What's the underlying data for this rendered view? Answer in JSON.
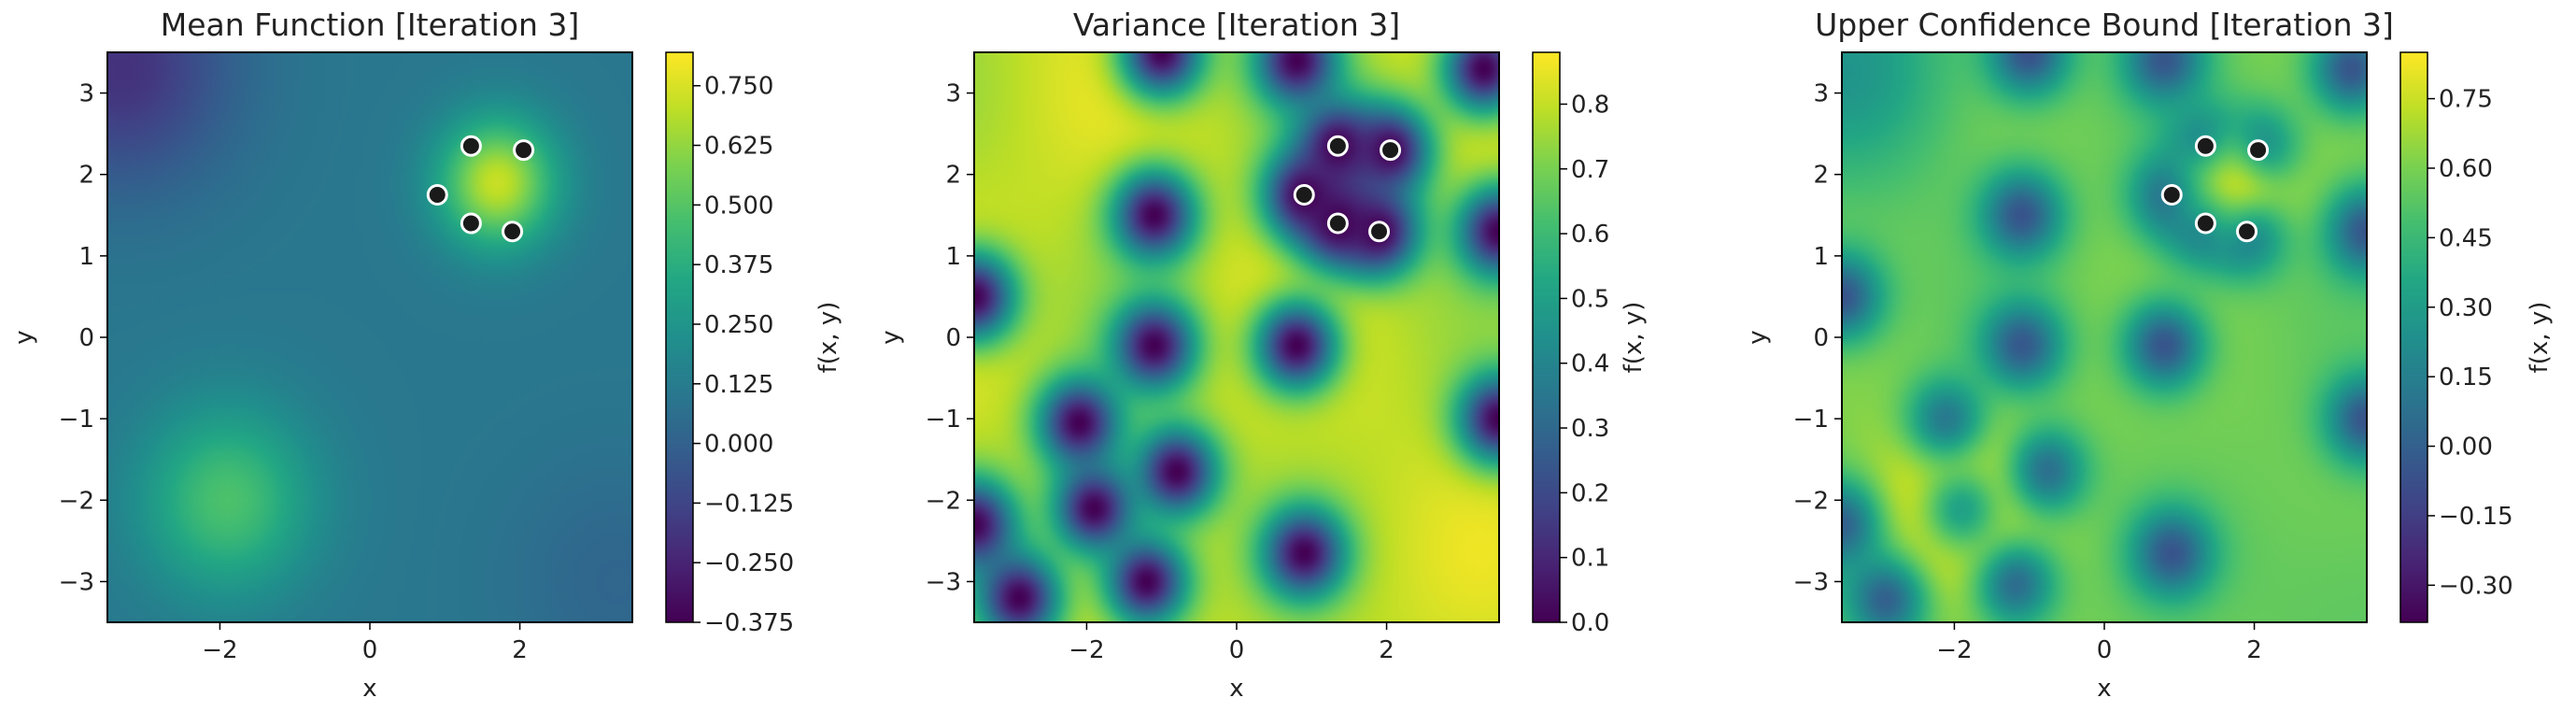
{
  "chart_data": [
    {
      "type": "heatmap",
      "title": "Mean Function [Iteration 3]",
      "xlabel": "x",
      "ylabel": "y",
      "colorbar_label": "f(x, y)",
      "xlim": [
        -3.5,
        3.5
      ],
      "ylim": [
        -3.5,
        3.5
      ],
      "xticks": [
        -2,
        0,
        2
      ],
      "yticks": [
        -3,
        -2,
        -1,
        0,
        1,
        2,
        3
      ],
      "xtick_labels": [
        "−2",
        "0",
        "2"
      ],
      "ytick_labels": [
        "−3",
        "−2",
        "−1",
        "0",
        "1",
        "2",
        "3"
      ],
      "colorbar_range": [
        -0.375,
        0.82
      ],
      "colorbar_ticks": [
        -0.375,
        -0.25,
        -0.125,
        0.0,
        0.125,
        0.25,
        0.375,
        0.5,
        0.625,
        0.75
      ],
      "colorbar_tick_labels": [
        "−0.375",
        "−0.250",
        "−0.125",
        "0.000",
        "0.125",
        "0.250",
        "0.375",
        "0.500",
        "0.625",
        "0.750"
      ],
      "colormap": "viridis",
      "field": {
        "base": 0.1,
        "bumps": [
          {
            "x": 1.7,
            "y": 1.9,
            "amp": 0.62,
            "sigma": 0.55
          },
          {
            "x": -1.9,
            "y": -2.0,
            "amp": 0.38,
            "sigma": 0.8
          },
          {
            "x": -3.3,
            "y": 3.3,
            "amp": -0.3,
            "sigma": 1.0
          },
          {
            "x": 3.3,
            "y": -3.0,
            "amp": -0.08,
            "sigma": 1.0
          }
        ]
      },
      "sample_points": [
        [
          1.35,
          2.35
        ],
        [
          2.05,
          2.3
        ],
        [
          0.9,
          1.75
        ],
        [
          1.35,
          1.4
        ],
        [
          1.9,
          1.3
        ]
      ]
    },
    {
      "type": "heatmap",
      "title": "Variance [Iteration 3]",
      "xlabel": "x",
      "ylabel": "y",
      "colorbar_label": "f(x, y)",
      "xlim": [
        -3.5,
        3.5
      ],
      "ylim": [
        -3.5,
        3.5
      ],
      "xticks": [
        -2,
        0,
        2
      ],
      "yticks": [
        -3,
        -2,
        -1,
        0,
        1,
        2,
        3
      ],
      "xtick_labels": [
        "−2",
        "0",
        "2"
      ],
      "ytick_labels": [
        "−3",
        "−2",
        "−1",
        "0",
        "1",
        "2",
        "3"
      ],
      "colorbar_range": [
        0.0,
        0.88
      ],
      "colorbar_ticks": [
        0.0,
        0.1,
        0.2,
        0.3,
        0.4,
        0.5,
        0.6,
        0.7,
        0.8
      ],
      "colorbar_tick_labels": [
        "0.0",
        "0.1",
        "0.2",
        "0.3",
        "0.4",
        "0.5",
        "0.6",
        "0.7",
        "0.8"
      ],
      "colormap": "viridis",
      "field": {
        "base": 0.8,
        "dips": [
          {
            "x": -1.1,
            "y": 1.5
          },
          {
            "x": -1.1,
            "y": -0.1
          },
          {
            "x": -0.8,
            "y": -1.65
          },
          {
            "x": -2.1,
            "y": -1.05
          },
          {
            "x": -1.9,
            "y": -2.1
          },
          {
            "x": -1.2,
            "y": -3.0
          },
          {
            "x": -2.9,
            "y": -3.2
          },
          {
            "x": -3.5,
            "y": -2.3
          },
          {
            "x": -3.5,
            "y": 0.5
          },
          {
            "x": 0.8,
            "y": -0.1
          },
          {
            "x": 0.9,
            "y": -2.65
          },
          {
            "x": 3.5,
            "y": 1.3
          },
          {
            "x": 3.5,
            "y": -1.0
          },
          {
            "x": -1.0,
            "y": 3.5
          },
          {
            "x": 0.8,
            "y": 3.4
          },
          {
            "x": 3.3,
            "y": 3.3
          },
          {
            "x": 1.35,
            "y": 2.35
          },
          {
            "x": 2.05,
            "y": 2.3
          },
          {
            "x": 0.9,
            "y": 1.75
          },
          {
            "x": 1.35,
            "y": 1.4
          },
          {
            "x": 1.9,
            "y": 1.3
          }
        ],
        "dip_sigma": 0.38
      },
      "sample_points": [
        [
          1.35,
          2.35
        ],
        [
          2.05,
          2.3
        ],
        [
          0.9,
          1.75
        ],
        [
          1.35,
          1.4
        ],
        [
          1.9,
          1.3
        ]
      ]
    },
    {
      "type": "heatmap",
      "title": "Upper Confidence Bound [Iteration 3]",
      "xlabel": "x",
      "ylabel": "y",
      "colorbar_label": "f(x, y)",
      "xlim": [
        -3.5,
        3.5
      ],
      "ylim": [
        -3.5,
        3.5
      ],
      "xticks": [
        -2,
        0,
        2
      ],
      "yticks": [
        -3,
        -2,
        -1,
        0,
        1,
        2,
        3
      ],
      "xtick_labels": [
        "−2",
        "0",
        "2"
      ],
      "ytick_labels": [
        "−3",
        "−2",
        "−1",
        "0",
        "1",
        "2",
        "3"
      ],
      "colorbar_range": [
        -0.38,
        0.85
      ],
      "colorbar_ticks": [
        -0.3,
        -0.15,
        0.0,
        0.15,
        0.3,
        0.45,
        0.6,
        0.75
      ],
      "colorbar_tick_labels": [
        "−0.30",
        "−0.15",
        "0.00",
        "0.15",
        "0.30",
        "0.45",
        "0.60",
        "0.75"
      ],
      "colormap": "viridis",
      "field": {
        "combine": "mean_plus_variance",
        "beta": 0.8,
        "offset": -0.15
      },
      "sample_points": [
        [
          1.35,
          2.35
        ],
        [
          2.05,
          2.3
        ],
        [
          0.9,
          1.75
        ],
        [
          1.35,
          1.4
        ],
        [
          1.9,
          1.3
        ]
      ]
    }
  ]
}
